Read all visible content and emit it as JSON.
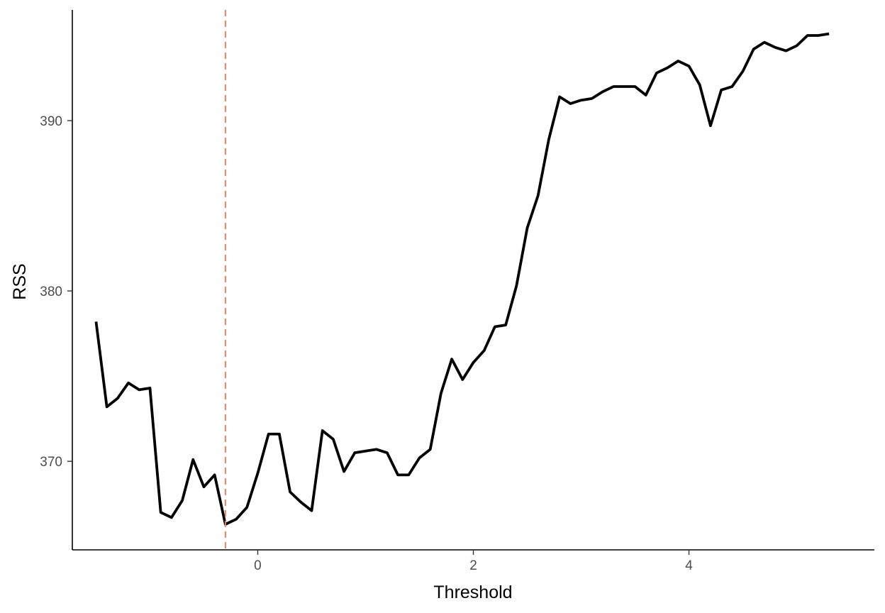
{
  "chart_data": {
    "type": "line",
    "title": "",
    "xlabel": "Threshold",
    "ylabel": "RSS",
    "xlim": [
      -1.72,
      5.72
    ],
    "ylim": [
      364.8,
      396.5
    ],
    "x_ticks": [
      0,
      2,
      4
    ],
    "x_tick_labels": [
      "0",
      "2",
      "4"
    ],
    "y_ticks": [
      370,
      380,
      390
    ],
    "y_tick_labels": [
      "370",
      "380",
      "390"
    ],
    "grid": false,
    "legend": "none",
    "series": [
      {
        "color": "#000000",
        "x": [
          -1.5,
          -1.4,
          -1.3,
          -1.2,
          -1.1,
          -1.0,
          -0.9,
          -0.8,
          -0.7,
          -0.6,
          -0.5,
          -0.4,
          -0.3,
          -0.2,
          -0.1,
          0.0,
          0.1,
          0.2,
          0.3,
          0.4,
          0.5,
          0.6,
          0.7,
          0.8,
          0.9,
          1.0,
          1.1,
          1.2,
          1.3,
          1.4,
          1.5,
          1.6,
          1.7,
          1.8,
          1.9,
          2.0,
          2.1,
          2.2,
          2.3,
          2.4,
          2.5,
          2.6,
          2.7,
          2.8,
          2.9,
          3.0,
          3.1,
          3.2,
          3.3,
          3.4,
          3.5,
          3.6,
          3.7,
          3.8,
          3.9,
          4.0,
          4.1,
          4.2,
          4.3,
          4.4,
          4.5,
          4.6,
          4.7,
          4.8,
          4.9,
          5.0,
          5.1,
          5.2,
          5.3
        ],
        "y": [
          378.2,
          373.2,
          373.7,
          374.6,
          374.2,
          374.3,
          367.0,
          366.7,
          367.7,
          370.1,
          368.5,
          369.2,
          366.3,
          366.6,
          367.3,
          369.3,
          371.6,
          371.6,
          368.2,
          367.6,
          367.1,
          371.8,
          371.3,
          369.4,
          370.5,
          370.6,
          370.7,
          370.5,
          369.2,
          369.2,
          370.2,
          370.7,
          374.0,
          376.0,
          374.8,
          375.8,
          376.5,
          377.9,
          378.0,
          380.3,
          383.7,
          385.6,
          388.9,
          391.4,
          391.0,
          391.2,
          391.3,
          391.7,
          392.0,
          392.0,
          392.0,
          391.5,
          392.8,
          393.1,
          393.5,
          393.2,
          392.1,
          389.7,
          391.8,
          392.0,
          392.9,
          394.2,
          394.6,
          394.3,
          394.1,
          394.4,
          395.0,
          395.0,
          395.1
        ]
      }
    ],
    "vline": {
      "x": -0.3,
      "color": "#e8826b",
      "style": "dashed"
    }
  }
}
